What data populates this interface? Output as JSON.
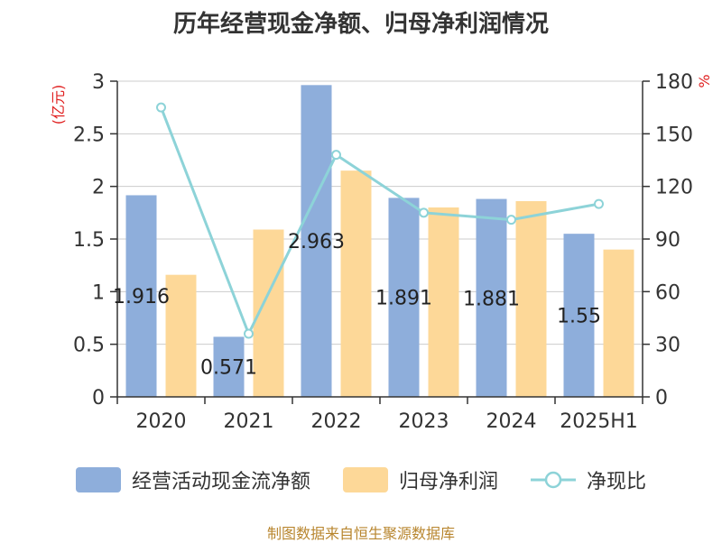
{
  "chart_data": {
    "type": "bar",
    "title": "历年经营现金净额、归母净利润情况",
    "categories": [
      "2020",
      "2021",
      "2022",
      "2023",
      "2024",
      "2025H1"
    ],
    "series": [
      {
        "name": "经营活动现金流净额",
        "type": "bar",
        "axis": "left",
        "values": [
          1.916,
          0.571,
          2.963,
          1.891,
          1.881,
          1.55
        ],
        "labels": [
          "1.916",
          "0.571",
          "2.963",
          "1.891",
          "1.881",
          "1.55"
        ],
        "color": "#8eaedb"
      },
      {
        "name": "归母净利润",
        "type": "bar",
        "axis": "left",
        "values": [
          1.16,
          1.59,
          2.15,
          1.8,
          1.86,
          1.4
        ],
        "color": "#fdd898"
      },
      {
        "name": "净现比",
        "type": "line",
        "axis": "right",
        "values": [
          165,
          36,
          138,
          105,
          101,
          110
        ],
        "color": "#8dd3d8"
      }
    ],
    "y_left": {
      "label": "(亿元)",
      "ylim": [
        0,
        3
      ],
      "ticks": [
        "0",
        "0.5",
        "1",
        "1.5",
        "2",
        "2.5",
        "3"
      ]
    },
    "y_right": {
      "label": "%",
      "ylim": [
        0,
        180
      ],
      "ticks": [
        "0",
        "30",
        "60",
        "90",
        "120",
        "150",
        "180"
      ]
    },
    "grid": true,
    "legend_position": "bottom"
  },
  "source_note": "制图数据来自恒生聚源数据库"
}
